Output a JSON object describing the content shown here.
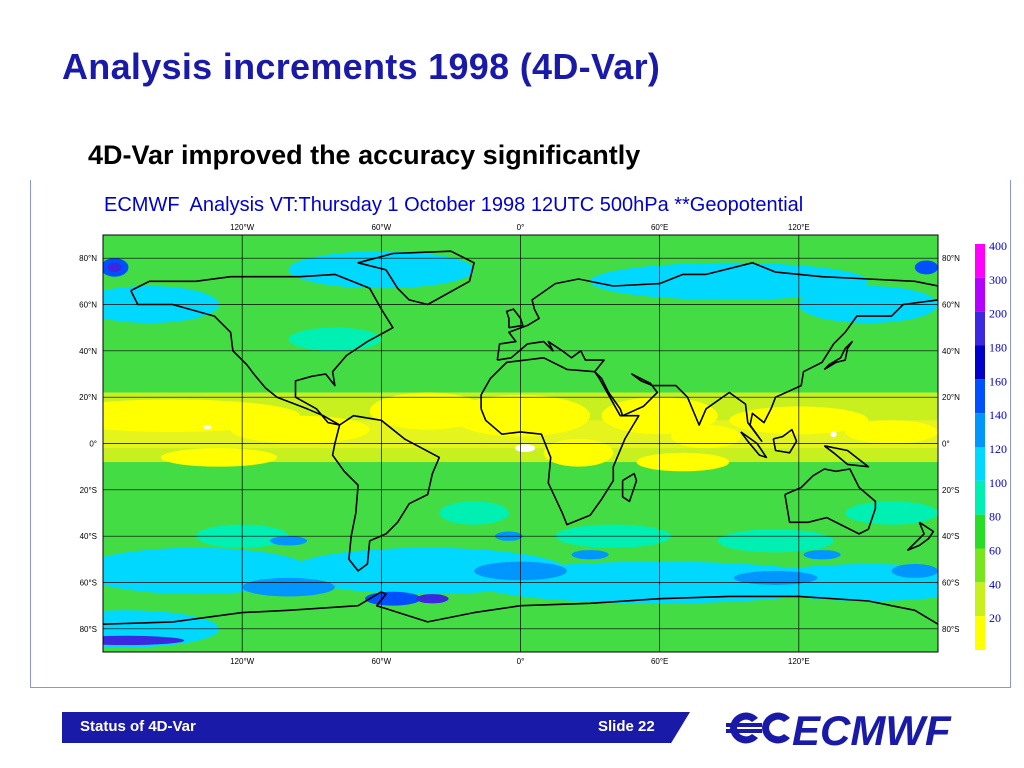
{
  "slide": {
    "title": "Analysis increments 1998 (4D-Var)",
    "subtitle": "4D-Var improved the accuracy significantly"
  },
  "map": {
    "title": "ECMWF  Analysis VT:Thursday 1 October 1998 12UTC 500hPa **Geopotential",
    "lon_labels": [
      "120°W",
      "60°W",
      "0°",
      "60°E",
      "120°E"
    ],
    "lon_values": [
      -120,
      -60,
      0,
      60,
      120
    ],
    "lat_labels": [
      "80°N",
      "60°N",
      "40°N",
      "20°N",
      "0°",
      "20°S",
      "40°S",
      "60°S",
      "80°S"
    ],
    "lat_values": [
      80,
      60,
      40,
      20,
      0,
      -20,
      -40,
      -60,
      -80
    ],
    "lon_range": [
      -180,
      180
    ],
    "lat_range": [
      -90,
      90
    ],
    "grid": true,
    "colors": {
      "ocean_base": "#44dc44",
      "land_line": "#000000",
      "grid_line": "#000000"
    }
  },
  "legend": {
    "levels": [
      "400",
      "300",
      "200",
      "180",
      "160",
      "140",
      "120",
      "100",
      "80",
      "60",
      "40",
      "20"
    ],
    "colors": [
      "#ff00ff",
      "#b400ff",
      "#3c28e0",
      "#0000c8",
      "#0050ff",
      "#0096ff",
      "#00d8ff",
      "#00f0b4",
      "#28dc28",
      "#78e61e",
      "#c8f01e",
      "#ffff00"
    ],
    "text_color": "#0000d0"
  },
  "footer": {
    "left": "Status of 4D-Var",
    "right": "Slide 22",
    "bar_color": "#1a1aa8"
  },
  "logo": {
    "text": "ECMWF",
    "color": "#1a1aa8"
  }
}
